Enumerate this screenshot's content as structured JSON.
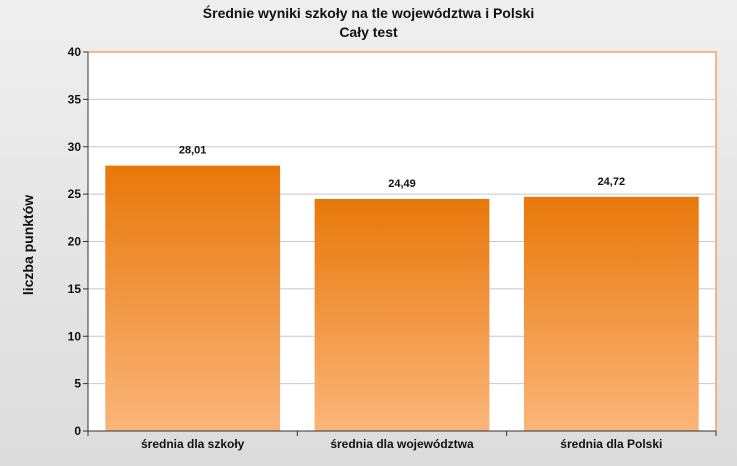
{
  "chart_data": {
    "type": "bar",
    "title": "Średnie wyniki szkoły na tle województwa i Polski",
    "subtitle": "Cały test",
    "ylabel": "liczba punktów",
    "xlabel": "",
    "categories": [
      "średnia dla szkoły",
      "średnia dla województwa",
      "średnia dla Polski"
    ],
    "values": [
      28.01,
      24.49,
      24.72
    ],
    "value_labels": [
      "28,01",
      "24,49",
      "24,72"
    ],
    "ylim": [
      0,
      40
    ],
    "yticks": [
      0,
      5,
      10,
      15,
      20,
      25,
      30,
      35,
      40
    ],
    "grid": true,
    "legend": "none",
    "colors": {
      "bar_top": "#e8780a",
      "bar_bottom": "#fbb57a",
      "plot_border": "#f07a20",
      "plot_background": "#ffffff",
      "gridline": "#c8c8c8"
    }
  }
}
